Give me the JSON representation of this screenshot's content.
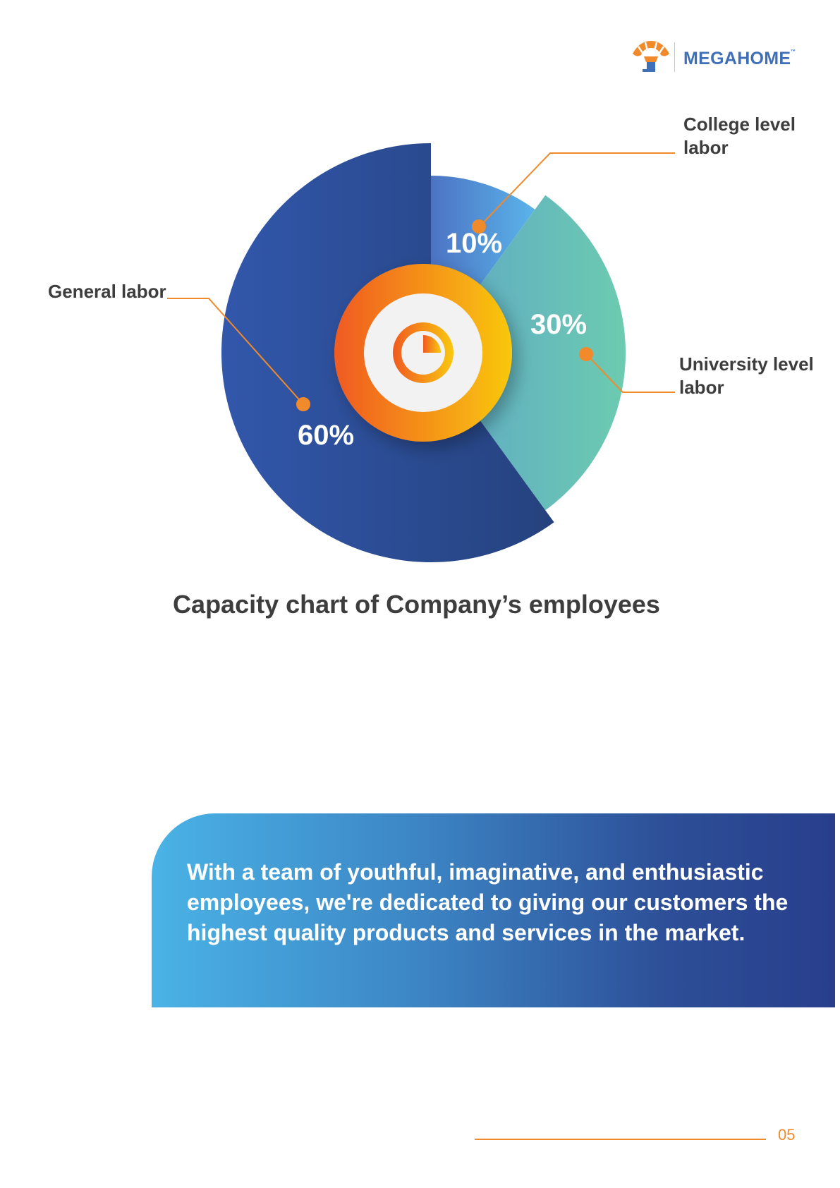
{
  "brand": {
    "name": "MEGAHOME",
    "tm": "™"
  },
  "chart_data": {
    "type": "pie",
    "title": "Capacity chart of Company’s employees",
    "categories": [
      "College level labor",
      "University level labor",
      "General labor"
    ],
    "values": [
      10,
      30,
      60
    ],
    "value_labels": [
      "10%",
      "30%",
      "60%"
    ],
    "legend": "callouts"
  },
  "callouts": {
    "college": "College level\nlabor",
    "university": "University level\nlabor",
    "general": "General labor"
  },
  "banner": {
    "text": "With a team of youthful, imaginative, and enthusiastic employees, we're dedicated to giving our customers the highest quality products and services in the market."
  },
  "footer": {
    "page": "05"
  },
  "colors": {
    "accent": "#f08a2a",
    "general": "#2e4f98",
    "college": "#4f8fd6",
    "university": "#6cc6b4"
  }
}
